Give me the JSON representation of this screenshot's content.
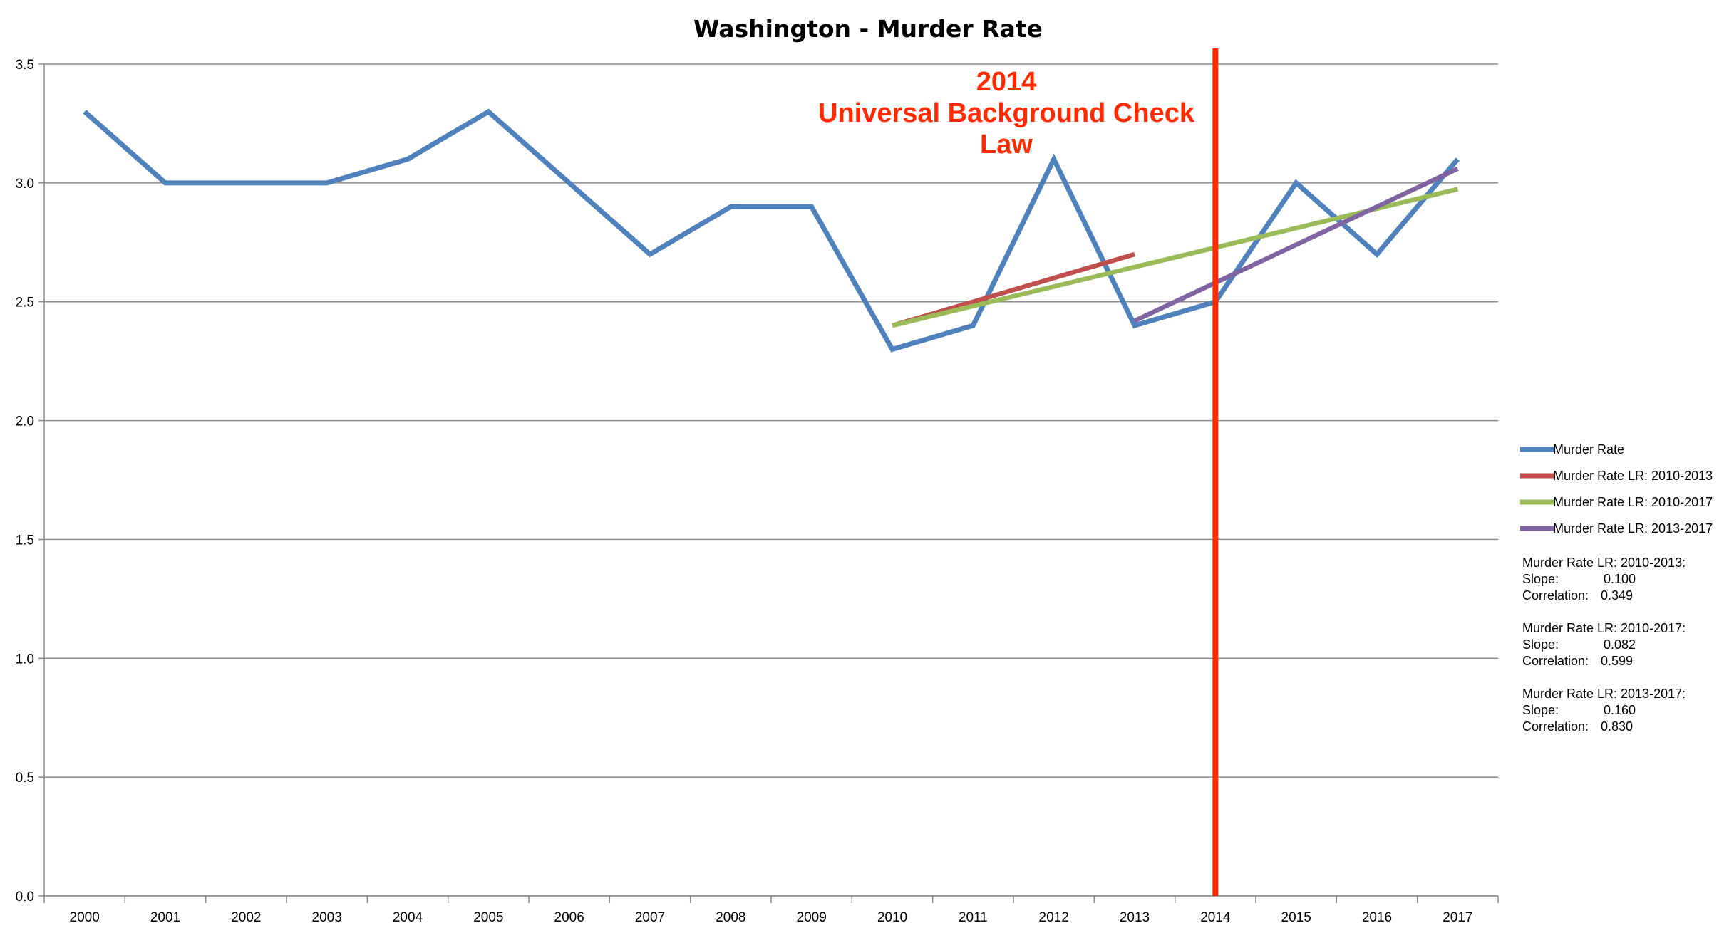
{
  "chart_data": {
    "type": "line",
    "title": "Washington - Murder Rate",
    "x": [
      "2000",
      "2001",
      "2002",
      "2003",
      "2004",
      "2005",
      "2006",
      "2007",
      "2008",
      "2009",
      "2010",
      "2011",
      "2012",
      "2013",
      "2014",
      "2015",
      "2016",
      "2017"
    ],
    "ylim": [
      0,
      3.5
    ],
    "yticks": [
      "0.0",
      "0.5",
      "1.0",
      "1.5",
      "2.0",
      "2.5",
      "3.0",
      "3.5"
    ],
    "grid": true,
    "legend_position": "right",
    "series": [
      {
        "name": "Murder Rate",
        "color": "#4f81bd",
        "x": [
          "2000",
          "2001",
          "2002",
          "2003",
          "2004",
          "2005",
          "2006",
          "2007",
          "2008",
          "2009",
          "2010",
          "2011",
          "2012",
          "2013",
          "2014",
          "2015",
          "2016",
          "2017"
        ],
        "values": [
          3.3,
          3.0,
          3.0,
          3.0,
          3.1,
          3.3,
          3.0,
          2.7,
          2.9,
          2.9,
          2.3,
          2.4,
          3.1,
          2.4,
          2.5,
          3.0,
          2.7,
          3.1
        ]
      },
      {
        "name": "Murder Rate LR: 2010-2013",
        "color": "#c0504d",
        "x": [
          "2010",
          "2013"
        ],
        "values": [
          2.4,
          2.7
        ]
      },
      {
        "name": "Murder Rate LR: 2010-2017",
        "color": "#9bbb59",
        "x": [
          "2010",
          "2017"
        ],
        "values": [
          2.4,
          2.974
        ]
      },
      {
        "name": "Murder Rate LR: 2013-2017",
        "color": "#8064a2",
        "x": [
          "2013",
          "2017"
        ],
        "values": [
          2.42,
          3.06
        ]
      }
    ],
    "annotation": {
      "x": "2014",
      "color": "#ff2a00",
      "lines": [
        "2014",
        "Universal Background Check",
        "Law"
      ]
    },
    "stats": [
      {
        "header": "Murder Rate LR: 2010-2013:",
        "slope_label": "Slope:",
        "slope": "0.100",
        "corr_label": "Correlation:",
        "corr": "0.349"
      },
      {
        "header": "Murder Rate LR: 2010-2017:",
        "slope_label": "Slope:",
        "slope": "0.082",
        "corr_label": "Correlation:",
        "corr": "0.599"
      },
      {
        "header": "Murder Rate LR: 2013-2017:",
        "slope_label": "Slope:",
        "slope": "0.160",
        "corr_label": "Correlation:",
        "corr": "0.830"
      }
    ]
  }
}
